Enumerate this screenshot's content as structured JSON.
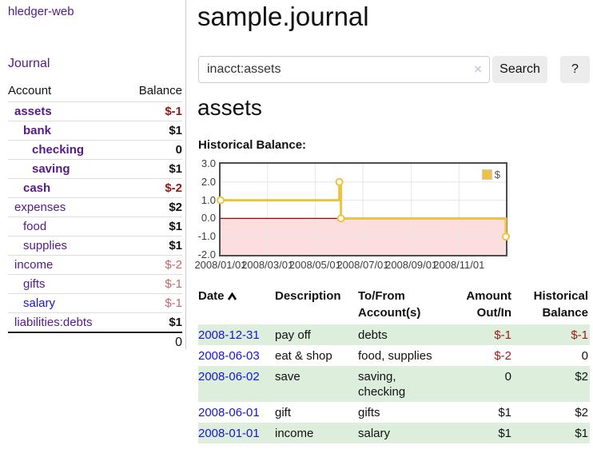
{
  "app": {
    "brand": "hledger-web",
    "nav": {
      "journal": "Journal"
    }
  },
  "colors": {
    "accent_purple": "#551a8b",
    "link_blue": "#1414dd",
    "negative_strong": "#941616",
    "negative_soft": "#c2686c",
    "register_negative": "#a11a1a",
    "row_stripe_green": "#ddeedd",
    "series_yellow": "#edc240"
  },
  "sidebar": {
    "columns": {
      "account": "Account",
      "balance": "Balance"
    },
    "accounts": [
      {
        "name": "assets",
        "indent": 0,
        "bold": true,
        "balance": "$-1",
        "balance_style": "neg-strong",
        "link_color": "purple"
      },
      {
        "name": "bank",
        "indent": 1,
        "bold": true,
        "balance": "$1",
        "balance_style": "pos",
        "link_color": "purple"
      },
      {
        "name": "checking",
        "indent": 2,
        "bold": true,
        "balance": "0",
        "balance_style": "pos",
        "link_color": "purple"
      },
      {
        "name": "saving",
        "indent": 2,
        "bold": true,
        "balance": "$1",
        "balance_style": "pos",
        "link_color": "purple"
      },
      {
        "name": "cash",
        "indent": 1,
        "bold": true,
        "balance": "$-2",
        "balance_style": "neg-strong",
        "link_color": "purple"
      },
      {
        "name": "expenses",
        "indent": 0,
        "bold": false,
        "balance": "$2",
        "balance_style": "pos",
        "link_color": "purple"
      },
      {
        "name": "food",
        "indent": 1,
        "bold": false,
        "balance": "$1",
        "balance_style": "pos",
        "link_color": "purple"
      },
      {
        "name": "supplies",
        "indent": 1,
        "bold": false,
        "balance": "$1",
        "balance_style": "pos",
        "link_color": "purple"
      },
      {
        "name": "income",
        "indent": 0,
        "bold": false,
        "balance": "$-2",
        "balance_style": "neg-soft",
        "link_color": "purple"
      },
      {
        "name": "gifts",
        "indent": 1,
        "bold": false,
        "balance": "$-1",
        "balance_style": "neg-soft",
        "link_color": "purple"
      },
      {
        "name": "salary",
        "indent": 1,
        "bold": false,
        "balance": "$-1",
        "balance_style": "neg-soft",
        "link_color": "blue"
      },
      {
        "name": "liabilities:debts",
        "indent": 0,
        "bold": false,
        "balance": "$1",
        "balance_style": "pos",
        "link_color": "purple"
      }
    ],
    "total": "0"
  },
  "main": {
    "title": "sample.journal",
    "search": {
      "value": "inacct:assets",
      "clear_icon": "×",
      "search_button": "Search",
      "help_button": "?"
    },
    "account_heading": "assets",
    "chart_heading": "Historical Balance:"
  },
  "chart_data": {
    "type": "line",
    "title": "Historical Balance",
    "legend_position": "top-right",
    "grid": true,
    "x_min": "2008-01-01",
    "x_max": "2008-12-31",
    "ylim": [
      -2,
      3
    ],
    "y_ticks": [
      {
        "value": 3,
        "label": "3.0"
      },
      {
        "value": 2,
        "label": "2.0"
      },
      {
        "value": 1,
        "label": "1.0"
      },
      {
        "value": 0,
        "label": "0.0"
      },
      {
        "value": -1,
        "label": "-1.0"
      },
      {
        "value": -2,
        "label": "-2.0"
      }
    ],
    "x_ticks": [
      {
        "date": "2008-01-01",
        "label": "2008/01/01"
      },
      {
        "date": "2008-03-01",
        "label": "2008/03/01"
      },
      {
        "date": "2008-05-01",
        "label": "2008/05/01"
      },
      {
        "date": "2008-07-01",
        "label": "2008/07/01"
      },
      {
        "date": "2008-09-01",
        "label": "2008/09/01"
      },
      {
        "date": "2008-11-01",
        "label": "2008/11/01"
      }
    ],
    "series": [
      {
        "name": "$",
        "color": "#edc240",
        "step": true,
        "points": [
          {
            "date": "2008-01-01",
            "value": 1
          },
          {
            "date": "2008-06-01",
            "value": 2
          },
          {
            "date": "2008-06-03",
            "value": 0
          },
          {
            "date": "2008-12-31",
            "value": -1
          }
        ]
      }
    ],
    "styles": {
      "negative_region_fill": "#fcdede",
      "zero_line_color": "#a40000",
      "gridline_color": "#e6e6e6",
      "border_color": "#4d4d4d",
      "marker_fill": "#ffffff"
    }
  },
  "register": {
    "headers": {
      "date": "Date",
      "sort_direction": "ascending",
      "description": "Description",
      "tofrom": "To/From Account(s)",
      "amount": "Amount Out/In",
      "balance": "Historical Balance"
    },
    "rows": [
      {
        "date": "2008-12-31",
        "description": "pay off",
        "accounts": "debts",
        "amount": "$-1",
        "amount_neg": true,
        "balance": "$-1",
        "balance_neg": true,
        "shaded": true
      },
      {
        "date": "2008-06-03",
        "description": "eat & shop",
        "accounts": "food, supplies",
        "amount": "$-2",
        "amount_neg": true,
        "balance": "0",
        "balance_neg": false,
        "shaded": false
      },
      {
        "date": "2008-06-02",
        "description": "save",
        "accounts": "saving, checking",
        "amount": "0",
        "amount_neg": false,
        "balance": "$2",
        "balance_neg": false,
        "shaded": true
      },
      {
        "date": "2008-06-01",
        "description": "gift",
        "accounts": "gifts",
        "amount": "$1",
        "amount_neg": false,
        "balance": "$2",
        "balance_neg": false,
        "shaded": false
      },
      {
        "date": "2008-01-01",
        "description": "income",
        "accounts": "salary",
        "amount": "$1",
        "amount_neg": false,
        "balance": "$1",
        "balance_neg": false,
        "shaded": true
      }
    ]
  }
}
